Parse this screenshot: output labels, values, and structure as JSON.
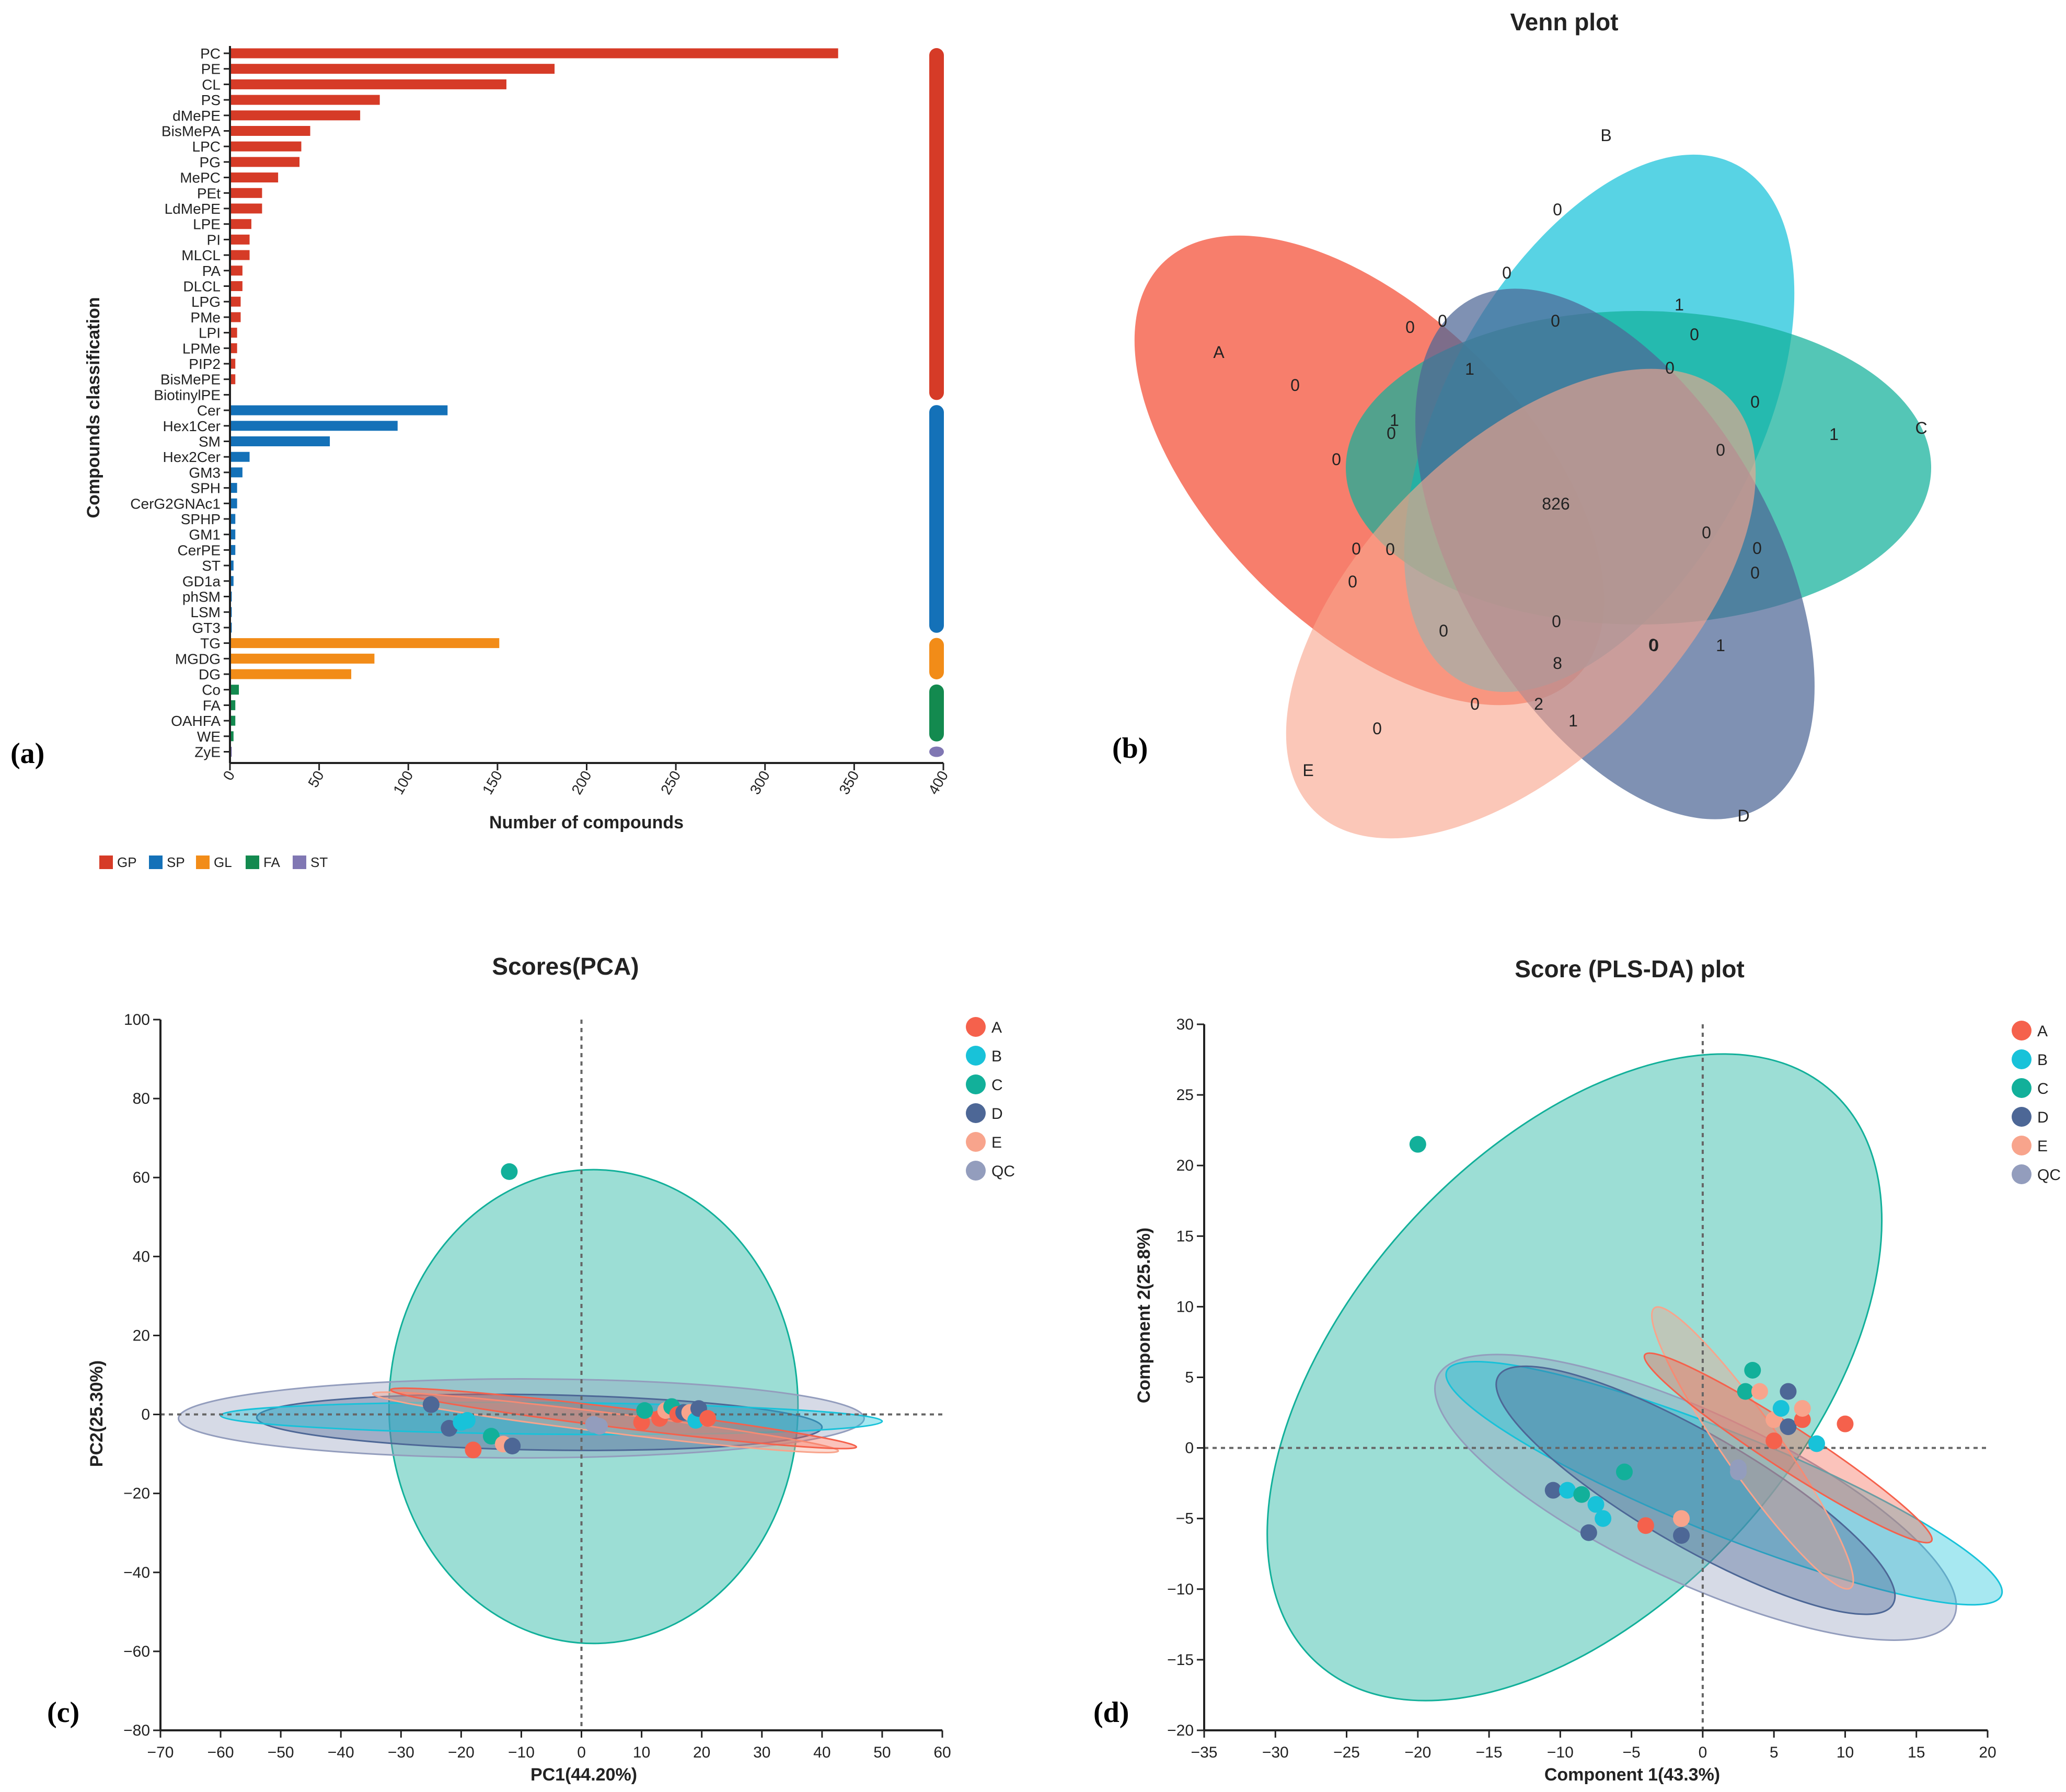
{
  "colors": {
    "GP": "#d63b27",
    "SP": "#1471b8",
    "GL": "#f28c18",
    "FA": "#138a4f",
    "ST": "#8077b3",
    "A": "#f5614c",
    "B": "#18c2d9",
    "C": "#12b09a",
    "D": "#4d6796",
    "E": "#f8a48c",
    "QC": "#939dbd"
  },
  "panels": {
    "a": "(a)",
    "b": "(b)",
    "c": "(c)",
    "d": "(d)"
  },
  "chart_data": [
    {
      "type": "bar",
      "orientation": "horizontal",
      "ylabel": "Compounds classification",
      "xlabel": "Number of compounds",
      "xlim": [
        0,
        400
      ],
      "xticks": [
        "0",
        "50",
        "100",
        "150",
        "200",
        "250",
        "300",
        "350",
        "400"
      ],
      "categories": [
        "PC",
        "PE",
        "CL",
        "PS",
        "dMePE",
        "BisMePA",
        "LPC",
        "PG",
        "MePC",
        "PEt",
        "LdMePE",
        "LPE",
        "PI",
        "MLCL",
        "PA",
        "DLCL",
        "LPG",
        "PMe",
        "LPI",
        "LPMe",
        "PIP2",
        "BisMePE",
        "BiotinylPE",
        "Cer",
        "Hex1Cer",
        "SM",
        "Hex2Cer",
        "GM3",
        "SPH",
        "CerG2GNAc1",
        "SPHP",
        "GM1",
        "CerPE",
        "ST",
        "GD1a",
        "phSM",
        "LSM",
        "GT3",
        "TG",
        "MGDG",
        "DG",
        "Co",
        "FA",
        "OAHFA",
        "WE",
        "ZyE"
      ],
      "values": [
        341,
        182,
        155,
        84,
        73,
        45,
        40,
        39,
        27,
        18,
        18,
        12,
        11,
        11,
        7,
        7,
        6,
        6,
        4,
        4,
        3,
        3,
        0,
        122,
        94,
        56,
        11,
        7,
        4,
        4,
        3,
        3,
        3,
        2,
        2,
        1,
        1,
        1,
        151,
        81,
        68,
        5,
        3,
        3,
        2,
        1
      ],
      "groups": [
        "GP",
        "GP",
        "GP",
        "GP",
        "GP",
        "GP",
        "GP",
        "GP",
        "GP",
        "GP",
        "GP",
        "GP",
        "GP",
        "GP",
        "GP",
        "GP",
        "GP",
        "GP",
        "GP",
        "GP",
        "GP",
        "GP",
        "GP",
        "SP",
        "SP",
        "SP",
        "SP",
        "SP",
        "SP",
        "SP",
        "SP",
        "SP",
        "SP",
        "SP",
        "SP",
        "SP",
        "SP",
        "SP",
        "GL",
        "GL",
        "GL",
        "FA",
        "FA",
        "FA",
        "FA",
        "ST"
      ],
      "legend": [
        "GP",
        "SP",
        "GL",
        "FA",
        "ST"
      ],
      "legend_position": "bottom-left"
    },
    {
      "type": "venn",
      "title": "Venn plot",
      "sets": [
        "A",
        "B",
        "C",
        "D",
        "E"
      ],
      "center_value": "826",
      "region_values": [
        "0",
        "0",
        "1",
        "0",
        "0",
        "0",
        "0",
        "1",
        "0",
        "0",
        "0",
        "1",
        "1",
        "0",
        "0",
        "0",
        "0",
        "0",
        "0",
        "0",
        "0",
        "0",
        "0",
        "0",
        "0",
        "8",
        "0",
        "1",
        "0",
        "2",
        "1",
        "0"
      ]
    },
    {
      "type": "scatter",
      "title": "Scores(PCA)",
      "xlabel": "PC1(44.20%)",
      "ylabel": "PC2(25.30%)",
      "xlim": [
        -70,
        60
      ],
      "ylim": [
        -80,
        100
      ],
      "xticks": [
        "−70",
        "−60",
        "−50",
        "−40",
        "−30",
        "−20",
        "−10",
        "0",
        "10",
        "20",
        "30",
        "40",
        "50",
        "60"
      ],
      "yticks": [
        "−80",
        "−60",
        "−40",
        "−20",
        "0",
        "20",
        "40",
        "60",
        "80",
        "100"
      ],
      "legend": [
        "A",
        "B",
        "C",
        "D",
        "E",
        "QC"
      ],
      "legend_position": "right",
      "ellipses": [
        {
          "group": "C",
          "cx": 2,
          "cy": 2,
          "rx": 34,
          "ry": 60,
          "angle": 0
        },
        {
          "group": "QC",
          "cx": -10,
          "cy": -1,
          "rx": 57,
          "ry": 10,
          "angle": 0
        },
        {
          "group": "D",
          "cx": -7,
          "cy": -2,
          "rx": 47,
          "ry": 7,
          "angle": -1
        },
        {
          "group": "B",
          "cx": -5,
          "cy": -1,
          "rx": 55,
          "ry": 4,
          "angle": -0.5
        },
        {
          "group": "E",
          "cx": 4,
          "cy": -2,
          "rx": 39,
          "ry": 2.5,
          "angle": -7
        },
        {
          "group": "A",
          "cx": 7,
          "cy": -1,
          "rx": 39,
          "ry": 2.5,
          "angle": -7
        }
      ],
      "points": [
        {
          "group": "C",
          "x": -12,
          "y": 61.5
        },
        {
          "group": "D",
          "x": -25,
          "y": 2.5
        },
        {
          "group": "D",
          "x": -22,
          "y": -3.5
        },
        {
          "group": "B",
          "x": -20,
          "y": -2
        },
        {
          "group": "B",
          "x": -19,
          "y": -1.5
        },
        {
          "group": "C",
          "x": -15,
          "y": -5.5
        },
        {
          "group": "A",
          "x": -18,
          "y": -9
        },
        {
          "group": "E",
          "x": -13,
          "y": -7.5
        },
        {
          "group": "D",
          "x": -11.5,
          "y": -8
        },
        {
          "group": "QC",
          "x": 3,
          "y": -3
        },
        {
          "group": "QC",
          "x": 2,
          "y": -2.5
        },
        {
          "group": "A",
          "x": 10,
          "y": -2
        },
        {
          "group": "C",
          "x": 10.5,
          "y": 1
        },
        {
          "group": "A",
          "x": 13,
          "y": -1
        },
        {
          "group": "E",
          "x": 14,
          "y": 1
        },
        {
          "group": "C",
          "x": 15,
          "y": 2
        },
        {
          "group": "A",
          "x": 16,
          "y": 0
        },
        {
          "group": "D",
          "x": 17,
          "y": 0.5
        },
        {
          "group": "E",
          "x": 18,
          "y": 0.5
        },
        {
          "group": "B",
          "x": 19,
          "y": -1.5
        },
        {
          "group": "D",
          "x": 19.5,
          "y": 1.5
        },
        {
          "group": "A",
          "x": 21,
          "y": -1
        }
      ]
    },
    {
      "type": "scatter",
      "title": "Score (PLS-DA) plot",
      "xlabel": "Component 1(43.3%)",
      "ylabel": "Component 2(25.8%)",
      "xlim": [
        -35,
        20
      ],
      "ylim": [
        -20,
        30
      ],
      "xticks": [
        "−35",
        "−30",
        "−25",
        "−20",
        "−15",
        "−10",
        "−5",
        "0",
        "5",
        "10",
        "15",
        "20"
      ],
      "yticks": [
        "−20",
        "−15",
        "−10",
        "−5",
        "0",
        "5",
        "10",
        "15",
        "20",
        "25",
        "30"
      ],
      "legend": [
        "A",
        "B",
        "C",
        "D",
        "E",
        "QC"
      ],
      "legend_position": "right",
      "ellipses": [
        {
          "group": "C",
          "cx": -9,
          "cy": 5,
          "rx": 27,
          "ry": 16,
          "angle": 48
        },
        {
          "group": "QC",
          "cx": -0.5,
          "cy": -3.5,
          "rx": 20,
          "ry": 6,
          "angle": -25
        },
        {
          "group": "B",
          "cx": 1.5,
          "cy": -2.5,
          "rx": 21,
          "ry": 3.6,
          "angle": -22
        },
        {
          "group": "D",
          "cx": -0.5,
          "cy": -3,
          "rx": 16,
          "ry": 4,
          "angle": -30
        },
        {
          "group": "E",
          "cx": 3.5,
          "cy": 0,
          "rx": 12,
          "ry": 2,
          "angle": -55
        },
        {
          "group": "A",
          "cx": 6,
          "cy": 0,
          "rx": 12,
          "ry": 1.5,
          "angle": -33
        }
      ],
      "points": [
        {
          "group": "C",
          "x": -20,
          "y": 21.5
        },
        {
          "group": "D",
          "x": -10.5,
          "y": -3
        },
        {
          "group": "B",
          "x": -9.5,
          "y": -3
        },
        {
          "group": "C",
          "x": -8.5,
          "y": -3.3
        },
        {
          "group": "B",
          "x": -7.5,
          "y": -4
        },
        {
          "group": "B",
          "x": -7,
          "y": -5
        },
        {
          "group": "D",
          "x": -8,
          "y": -6
        },
        {
          "group": "C",
          "x": -5.5,
          "y": -1.7
        },
        {
          "group": "A",
          "x": -4,
          "y": -5.5
        },
        {
          "group": "E",
          "x": -1.5,
          "y": -5
        },
        {
          "group": "D",
          "x": -1.5,
          "y": -6.2
        },
        {
          "group": "QC",
          "x": 2.5,
          "y": -1.4
        },
        {
          "group": "QC",
          "x": 2.5,
          "y": -1.7
        },
        {
          "group": "C",
          "x": 3,
          "y": 4
        },
        {
          "group": "C",
          "x": 3.5,
          "y": 5.5
        },
        {
          "group": "E",
          "x": 4,
          "y": 4
        },
        {
          "group": "A",
          "x": 5,
          "y": 0.5
        },
        {
          "group": "E",
          "x": 5,
          "y": 2
        },
        {
          "group": "B",
          "x": 5.5,
          "y": 2.8
        },
        {
          "group": "D",
          "x": 6,
          "y": 4
        },
        {
          "group": "D",
          "x": 6,
          "y": 1.5
        },
        {
          "group": "A",
          "x": 7,
          "y": 2
        },
        {
          "group": "E",
          "x": 7,
          "y": 2.8
        },
        {
          "group": "B",
          "x": 8,
          "y": 0.3
        },
        {
          "group": "A",
          "x": 10,
          "y": 1.7
        }
      ]
    }
  ]
}
